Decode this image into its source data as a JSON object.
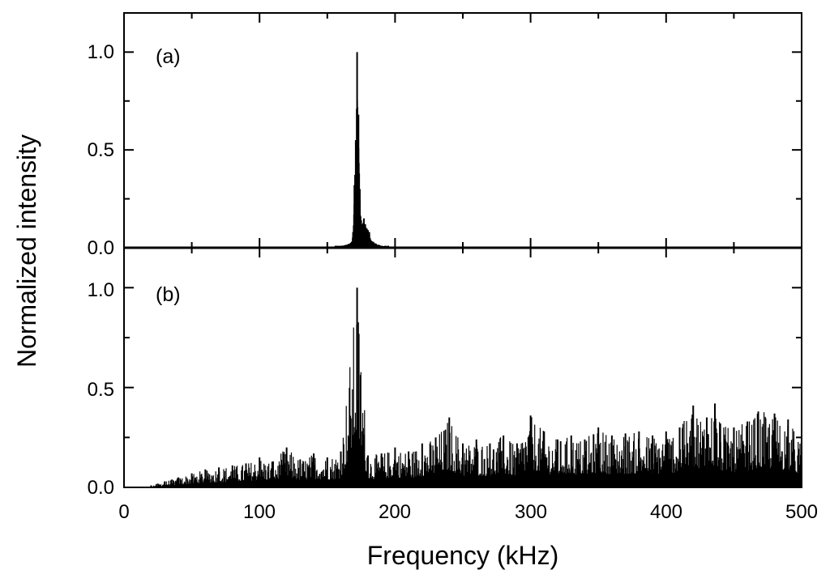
{
  "chart_data": [
    {
      "panel": "(a)",
      "type": "bar",
      "ylabel": "Normalized intensity",
      "xlim": [
        0,
        500
      ],
      "ylim": [
        0,
        1.2
      ],
      "yticks": [
        "0.0",
        "0.5",
        "1.0"
      ],
      "peak": {
        "x": 172,
        "y": 1.0
      },
      "x": [
        156,
        160,
        164,
        166,
        168,
        169,
        170,
        171,
        172,
        173,
        174,
        175,
        176,
        177,
        178,
        179,
        180,
        181,
        182,
        184,
        186,
        188,
        190,
        195
      ],
      "y": [
        0.01,
        0.01,
        0.015,
        0.02,
        0.03,
        0.08,
        0.32,
        0.55,
        1.0,
        0.68,
        0.3,
        0.14,
        0.12,
        0.15,
        0.12,
        0.1,
        0.09,
        0.08,
        0.04,
        0.03,
        0.02,
        0.015,
        0.01,
        0.01
      ]
    },
    {
      "panel": "(b)",
      "type": "bar",
      "xlabel": "Frequency (kHz)",
      "ylabel": "Normalized intensity",
      "xlim": [
        0,
        500
      ],
      "ylim": [
        0,
        1.2
      ],
      "xticks": [
        "0",
        "100",
        "200",
        "300",
        "400",
        "500"
      ],
      "yticks": [
        "0.0",
        "0.5",
        "1.0"
      ],
      "peak": {
        "x": 172,
        "y": 1.0
      },
      "x": [
        20,
        30,
        40,
        50,
        60,
        70,
        80,
        90,
        100,
        110,
        120,
        130,
        140,
        150,
        160,
        172,
        180,
        190,
        200,
        210,
        220,
        230,
        240,
        250,
        260,
        270,
        280,
        290,
        300,
        310,
        320,
        330,
        340,
        350,
        360,
        370,
        380,
        390,
        400,
        410,
        420,
        430,
        436,
        440,
        450,
        460,
        468,
        480,
        490,
        500
      ],
      "y": [
        0.01,
        0.03,
        0.05,
        0.07,
        0.09,
        0.1,
        0.11,
        0.12,
        0.15,
        0.13,
        0.2,
        0.14,
        0.17,
        0.15,
        0.18,
        1.0,
        0.16,
        0.17,
        0.2,
        0.18,
        0.22,
        0.25,
        0.35,
        0.22,
        0.24,
        0.22,
        0.26,
        0.22,
        0.36,
        0.28,
        0.24,
        0.26,
        0.24,
        0.3,
        0.26,
        0.27,
        0.28,
        0.26,
        0.28,
        0.3,
        0.41,
        0.35,
        0.42,
        0.32,
        0.3,
        0.33,
        0.38,
        0.37,
        0.34,
        0.24
      ]
    }
  ],
  "axes": {
    "xlabel": "Frequency (kHz)",
    "ylabel": "Normalized intensity"
  }
}
